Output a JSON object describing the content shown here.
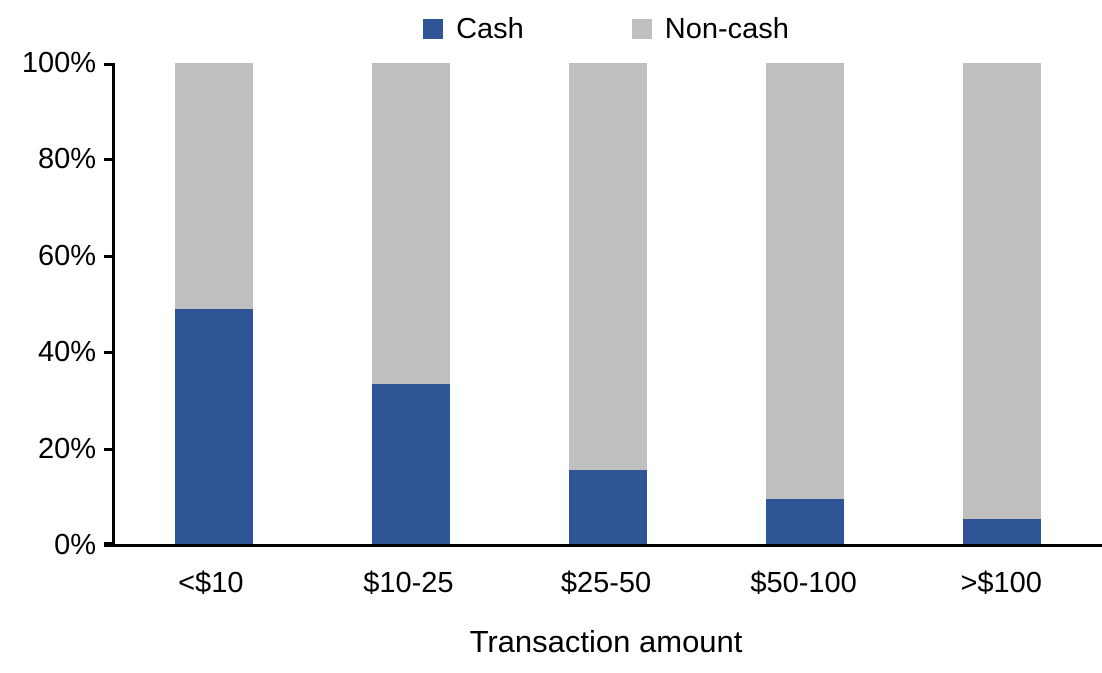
{
  "chart_data": {
    "type": "bar",
    "stacked": true,
    "orientation": "vertical",
    "title": "",
    "xlabel": "Transaction amount",
    "ylabel": "",
    "categories": [
      "<$10",
      "$10-25",
      "$25-50",
      "$50-100",
      ">$100"
    ],
    "series": [
      {
        "name": "Cash",
        "color": "#2F5597",
        "values": [
          49,
          33.5,
          15.5,
          9.5,
          5.5
        ]
      },
      {
        "name": "Non-cash",
        "color": "#BFBFBF",
        "values": [
          51,
          66.5,
          84.5,
          90.5,
          94.5
        ]
      }
    ],
    "ylim": [
      0,
      100
    ],
    "yticks": [
      "0%",
      "20%",
      "40%",
      "60%",
      "80%",
      "100%"
    ],
    "grid": false,
    "legend_position": "top-center",
    "axis_color": "#000000",
    "background_color": "#FFFFFF"
  }
}
